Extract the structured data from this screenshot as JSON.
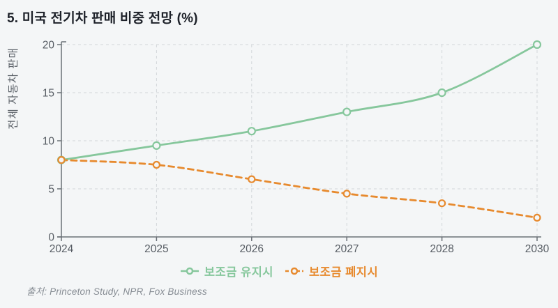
{
  "page": {
    "title": "5. 미국 전기차 판매 비중 전망 (%)",
    "source": "출처: Princeton Study, NPR, Fox Business"
  },
  "colors": {
    "background": "#f4f6f7",
    "title_text": "#1d2129",
    "axis": "#6a7076",
    "tick_text": "#565c63",
    "grid": "#d2d6d9",
    "maintain_green": "#86c79c",
    "abolish_orange": "#e78a2e",
    "source_text": "#878d94"
  },
  "legend": {
    "maintain_label": "보조금 유지시",
    "abolish_label": "보조금 폐지시"
  },
  "chart_data": {
    "type": "line",
    "title": "5. 미국 전기차 판매 비중 전망 (%)",
    "xlabel": "",
    "ylabel": "전체 자동차 판매",
    "categories": [
      "2024",
      "2025",
      "2026",
      "2027",
      "2028",
      "2030"
    ],
    "series": [
      {
        "name": "보조금 유지시",
        "values": [
          8,
          9.5,
          11,
          13,
          15,
          20
        ],
        "color": "#86c79c",
        "style": "solid"
      },
      {
        "name": "보조금 폐지시",
        "values": [
          8,
          7.5,
          6,
          4.5,
          3.5,
          2
        ],
        "color": "#e78a2e",
        "style": "dashed"
      }
    ],
    "ylim": [
      0,
      20
    ],
    "yticks": [
      0,
      5,
      10,
      15,
      20
    ],
    "grid": true,
    "legend_position": "bottom"
  }
}
